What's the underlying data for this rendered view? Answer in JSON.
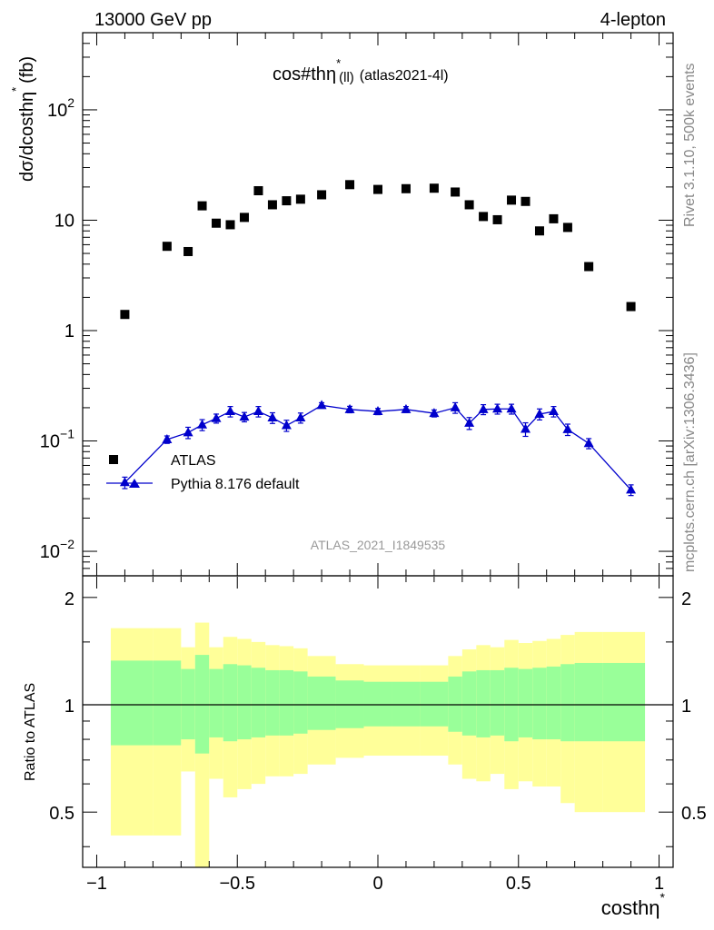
{
  "header": {
    "left": "13000 GeV pp",
    "right": "4-lepton"
  },
  "title": {
    "main": "cos#th",
    "eta": "η",
    "star": "*",
    "sub": "(ll)",
    "tag": "(atlas2021-4l)"
  },
  "side_labels": {
    "rivet": "Rivet 3.1.10,  500k events",
    "mcplots": "mcplots.cern.ch [arXiv:1306.3436]"
  },
  "watermark": "ATLAS_2021_I1849535",
  "axes": {
    "ylabel_main": "dσ/dcosthη",
    "ylabel_main_tail": "(fb)",
    "ylabel_star": "*",
    "ylabel_ratio": "Ratio to ATLAS",
    "xlabel": "costhη",
    "xlabel_star": "*",
    "main_yticks": [
      {
        "v": 0.01,
        "base": "10",
        "exp": "−2"
      },
      {
        "v": 0.1,
        "base": "10",
        "exp": "−1"
      },
      {
        "v": 1,
        "base": "1",
        "exp": ""
      },
      {
        "v": 10,
        "base": "10",
        "exp": ""
      },
      {
        "v": 100,
        "base": "10",
        "exp": "2"
      }
    ],
    "ratio_yticks": [
      {
        "v": 0.5,
        "label": "0.5"
      },
      {
        "v": 1,
        "label": "1"
      },
      {
        "v": 2,
        "label": "2"
      }
    ],
    "xticks": [
      {
        "v": -1,
        "label": "−1"
      },
      {
        "v": -0.5,
        "label": "−0.5"
      },
      {
        "v": 0,
        "label": "0"
      },
      {
        "v": 0.5,
        "label": "0.5"
      },
      {
        "v": 1,
        "label": "1"
      }
    ]
  },
  "legend": {
    "atlas": "ATLAS",
    "pythia": "Pythia 8.176 default"
  },
  "colors": {
    "data": "#000000",
    "mc": "#0000cc",
    "band_inner": "#99ff99",
    "band_outer": "#ffff99"
  },
  "chart_data": {
    "type": "scatter",
    "xlim": [
      -1.05,
      1.05
    ],
    "ylim_main": [
      0.006,
      500
    ],
    "ylim_ratio": [
      0.35,
      2.3
    ],
    "log_y": true,
    "series": [
      {
        "name": "ATLAS",
        "x": [
          -0.9,
          -0.75,
          -0.675,
          -0.625,
          -0.575,
          -0.525,
          -0.475,
          -0.425,
          -0.375,
          -0.325,
          -0.275,
          -0.2,
          -0.1,
          0.0,
          0.1,
          0.2,
          0.275,
          0.325,
          0.375,
          0.425,
          0.475,
          0.525,
          0.575,
          0.625,
          0.675,
          0.75,
          0.9
        ],
        "y": [
          1.4,
          5.8,
          5.2,
          13.5,
          9.4,
          9.1,
          10.6,
          18.5,
          13.8,
          15.0,
          15.5,
          17.0,
          21.0,
          19.0,
          19.3,
          19.5,
          18.0,
          13.8,
          10.8,
          10.1,
          15.2,
          14.8,
          8.0,
          10.3,
          8.6,
          3.8,
          1.65
        ]
      },
      {
        "name": "Pythia 8.176 default",
        "x": [
          -0.9,
          -0.75,
          -0.675,
          -0.625,
          -0.575,
          -0.525,
          -0.475,
          -0.425,
          -0.375,
          -0.325,
          -0.275,
          -0.2,
          -0.1,
          0.0,
          0.1,
          0.2,
          0.275,
          0.325,
          0.375,
          0.425,
          0.475,
          0.525,
          0.575,
          0.625,
          0.675,
          0.75,
          0.9
        ],
        "y": [
          0.042,
          0.103,
          0.119,
          0.14,
          0.16,
          0.185,
          0.165,
          0.185,
          0.162,
          0.138,
          0.162,
          0.21,
          0.193,
          0.185,
          0.193,
          0.178,
          0.2,
          0.145,
          0.193,
          0.195,
          0.195,
          0.128,
          0.175,
          0.185,
          0.127,
          0.095,
          0.036
        ],
        "err": [
          0.005,
          0.008,
          0.014,
          0.016,
          0.015,
          0.02,
          0.016,
          0.02,
          0.018,
          0.016,
          0.017,
          0.012,
          0.013,
          0.012,
          0.012,
          0.013,
          0.022,
          0.018,
          0.02,
          0.02,
          0.02,
          0.018,
          0.02,
          0.02,
          0.015,
          0.01,
          0.004
        ]
      }
    ],
    "ratio_bands": {
      "edges": [
        -0.95,
        -0.8,
        -0.7,
        -0.65,
        -0.6,
        -0.55,
        -0.5,
        -0.45,
        -0.4,
        -0.35,
        -0.3,
        -0.25,
        -0.15,
        -0.05,
        0.05,
        0.15,
        0.25,
        0.3,
        0.35,
        0.4,
        0.45,
        0.5,
        0.55,
        0.6,
        0.65,
        0.7,
        0.8,
        0.95
      ],
      "outer_low": [
        0.43,
        0.43,
        0.65,
        0.35,
        0.62,
        0.55,
        0.58,
        0.6,
        0.63,
        0.63,
        0.64,
        0.68,
        0.71,
        0.72,
        0.72,
        0.72,
        0.68,
        0.62,
        0.61,
        0.64,
        0.58,
        0.61,
        0.59,
        0.59,
        0.53,
        0.5,
        0.5
      ],
      "outer_high": [
        1.64,
        1.64,
        1.45,
        1.7,
        1.45,
        1.55,
        1.53,
        1.5,
        1.47,
        1.46,
        1.44,
        1.37,
        1.3,
        1.29,
        1.29,
        1.29,
        1.37,
        1.43,
        1.47,
        1.45,
        1.52,
        1.49,
        1.51,
        1.53,
        1.57,
        1.6,
        1.6
      ],
      "inner_low": [
        0.77,
        0.77,
        0.8,
        0.73,
        0.81,
        0.79,
        0.8,
        0.81,
        0.82,
        0.82,
        0.83,
        0.85,
        0.86,
        0.87,
        0.87,
        0.87,
        0.84,
        0.82,
        0.81,
        0.82,
        0.79,
        0.81,
        0.8,
        0.8,
        0.79,
        0.79,
        0.79
      ],
      "inner_high": [
        1.33,
        1.33,
        1.26,
        1.38,
        1.26,
        1.3,
        1.29,
        1.27,
        1.25,
        1.25,
        1.24,
        1.2,
        1.17,
        1.16,
        1.16,
        1.16,
        1.2,
        1.24,
        1.25,
        1.25,
        1.27,
        1.26,
        1.27,
        1.28,
        1.3,
        1.31,
        1.31
      ]
    }
  }
}
